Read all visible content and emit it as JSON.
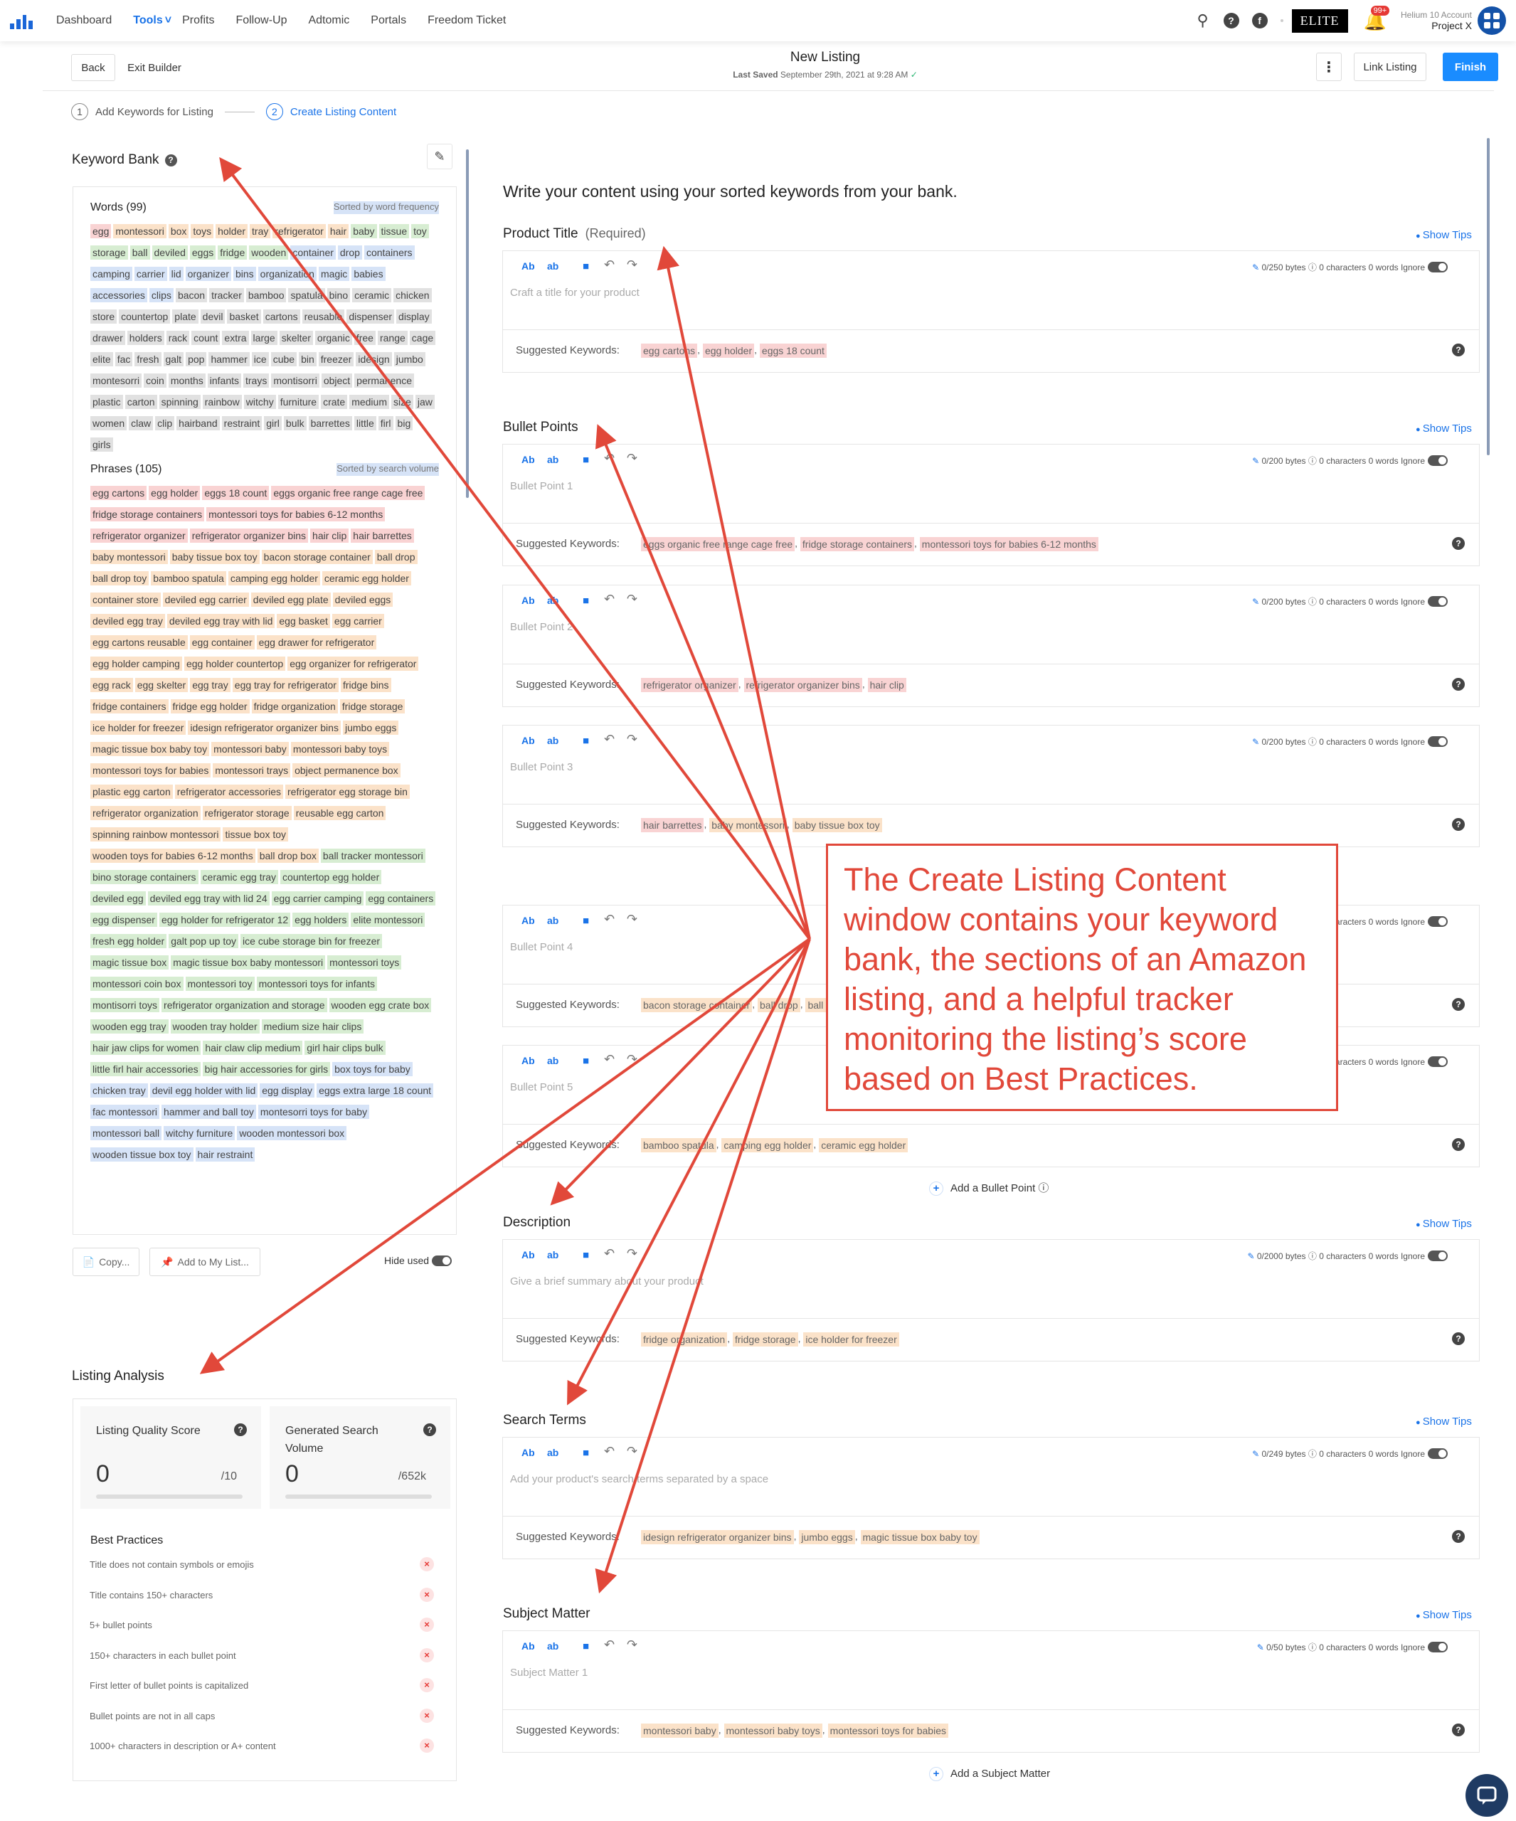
{
  "nav": {
    "links": [
      "Dashboard",
      "Tools",
      "Profits",
      "Follow-Up",
      "Adtomic",
      "Portals",
      "Freedom Ticket"
    ],
    "elite": "ELITE",
    "notif_count": "99+",
    "account_label": "Helium 10 Account",
    "account_name": "Project X"
  },
  "builder": {
    "back": "Back",
    "exit": "Exit Builder",
    "title": "New Listing",
    "saved_label": "Last Saved",
    "saved_time": "September 29th, 2021 at 9:28 AM",
    "link_listing": "Link Listing",
    "finish": "Finish"
  },
  "steps": {
    "s1_num": "1",
    "s1": "Add Keywords for Listing",
    "s2_num": "2",
    "s2": "Create Listing Content"
  },
  "keyword_bank": {
    "title": "Keyword Bank",
    "words_header": "Words (99)",
    "words_sort": "Sorted by word frequency",
    "words": [
      [
        "egg",
        "r"
      ],
      [
        "montessori",
        "o"
      ],
      [
        "box",
        "o"
      ],
      [
        "toys",
        "o"
      ],
      [
        "holder",
        "o"
      ],
      [
        "tray",
        "o"
      ],
      [
        "refrigerator",
        "o"
      ],
      [
        "hair",
        "o"
      ],
      [
        "baby",
        "g"
      ],
      [
        "tissue",
        "g"
      ],
      [
        "toy",
        "g"
      ],
      [
        "storage",
        "g"
      ],
      [
        "ball",
        "g"
      ],
      [
        "deviled",
        "g"
      ],
      [
        "eggs",
        "g"
      ],
      [
        "fridge",
        "g"
      ],
      [
        "wooden",
        "g"
      ],
      [
        "container",
        "b"
      ],
      [
        "drop",
        "b"
      ],
      [
        "containers",
        "b"
      ],
      [
        "camping",
        "b"
      ],
      [
        "carrier",
        "b"
      ],
      [
        "lid",
        "b"
      ],
      [
        "organizer",
        "b"
      ],
      [
        "bins",
        "b"
      ],
      [
        "organization",
        "b"
      ],
      [
        "magic",
        "b"
      ],
      [
        "babies",
        "b"
      ],
      [
        "accessories",
        "b"
      ],
      [
        "clips",
        "b"
      ],
      [
        "bacon",
        "x"
      ],
      [
        "tracker",
        "x"
      ],
      [
        "bamboo",
        "x"
      ],
      [
        "spatula",
        "x"
      ],
      [
        "bino",
        "x"
      ],
      [
        "ceramic",
        "x"
      ],
      [
        "chicken",
        "x"
      ],
      [
        "store",
        "x"
      ],
      [
        "countertop",
        "x"
      ],
      [
        "plate",
        "x"
      ],
      [
        "devil",
        "x"
      ],
      [
        "basket",
        "x"
      ],
      [
        "cartons",
        "x"
      ],
      [
        "reusable",
        "x"
      ],
      [
        "dispenser",
        "x"
      ],
      [
        "display",
        "x"
      ],
      [
        "drawer",
        "x"
      ],
      [
        "holders",
        "x"
      ],
      [
        "rack",
        "x"
      ],
      [
        "count",
        "x"
      ],
      [
        "extra",
        "x"
      ],
      [
        "large",
        "x"
      ],
      [
        "skelter",
        "x"
      ],
      [
        "organic",
        "x"
      ],
      [
        "free",
        "x"
      ],
      [
        "range",
        "x"
      ],
      [
        "cage",
        "x"
      ],
      [
        "elite",
        "x"
      ],
      [
        "fac",
        "x"
      ],
      [
        "fresh",
        "x"
      ],
      [
        "galt",
        "x"
      ],
      [
        "pop",
        "x"
      ],
      [
        "hammer",
        "x"
      ],
      [
        "ice",
        "x"
      ],
      [
        "cube",
        "x"
      ],
      [
        "bin",
        "x"
      ],
      [
        "freezer",
        "x"
      ],
      [
        "idesign",
        "x"
      ],
      [
        "jumbo",
        "x"
      ],
      [
        "montesorri",
        "x"
      ],
      [
        "coin",
        "x"
      ],
      [
        "months",
        "x"
      ],
      [
        "infants",
        "x"
      ],
      [
        "trays",
        "x"
      ],
      [
        "montisorri",
        "x"
      ],
      [
        "object",
        "x"
      ],
      [
        "permanence",
        "x"
      ],
      [
        "plastic",
        "x"
      ],
      [
        "carton",
        "x"
      ],
      [
        "spinning",
        "x"
      ],
      [
        "rainbow",
        "x"
      ],
      [
        "witchy",
        "x"
      ],
      [
        "furniture",
        "x"
      ],
      [
        "crate",
        "x"
      ],
      [
        "medium",
        "x"
      ],
      [
        "size",
        "x"
      ],
      [
        "jaw",
        "x"
      ],
      [
        "women",
        "x"
      ],
      [
        "claw",
        "x"
      ],
      [
        "clip",
        "x"
      ],
      [
        "hairband",
        "x"
      ],
      [
        "restraint",
        "x"
      ],
      [
        "girl",
        "x"
      ],
      [
        "bulk",
        "x"
      ],
      [
        "barrettes",
        "x"
      ],
      [
        "little",
        "x"
      ],
      [
        "firl",
        "x"
      ],
      [
        "big",
        "x"
      ],
      [
        "girls",
        "x"
      ]
    ],
    "phrases_header": "Phrases (105)",
    "phrases_sort": "Sorted by search volume",
    "phrases": [
      [
        "egg cartons",
        "r"
      ],
      [
        "egg holder",
        "r"
      ],
      [
        "eggs 18 count",
        "r"
      ],
      [
        "eggs organic free range cage free",
        "r"
      ],
      [
        "fridge storage containers",
        "r"
      ],
      [
        "montessori toys for babies 6-12 months",
        "r"
      ],
      [
        "refrigerator organizer",
        "r"
      ],
      [
        "refrigerator organizer bins",
        "r"
      ],
      [
        "hair clip",
        "r"
      ],
      [
        "hair barrettes",
        "r"
      ],
      [
        "baby montessori",
        "o"
      ],
      [
        "baby tissue box toy",
        "o"
      ],
      [
        "bacon storage container",
        "o"
      ],
      [
        "ball drop",
        "o"
      ],
      [
        "ball drop toy",
        "o"
      ],
      [
        "bamboo spatula",
        "o"
      ],
      [
        "camping egg holder",
        "o"
      ],
      [
        "ceramic egg holder",
        "o"
      ],
      [
        "container store",
        "o"
      ],
      [
        "deviled egg carrier",
        "o"
      ],
      [
        "deviled egg plate",
        "o"
      ],
      [
        "deviled eggs",
        "o"
      ],
      [
        "deviled egg tray",
        "o"
      ],
      [
        "deviled egg tray with lid",
        "o"
      ],
      [
        "egg basket",
        "o"
      ],
      [
        "egg carrier",
        "o"
      ],
      [
        "egg cartons reusable",
        "o"
      ],
      [
        "egg container",
        "o"
      ],
      [
        "egg drawer for refrigerator",
        "o"
      ],
      [
        "egg holder camping",
        "o"
      ],
      [
        "egg holder countertop",
        "o"
      ],
      [
        "egg organizer for refrigerator",
        "o"
      ],
      [
        "egg rack",
        "o"
      ],
      [
        "egg skelter",
        "o"
      ],
      [
        "egg tray",
        "o"
      ],
      [
        "egg tray for refrigerator",
        "o"
      ],
      [
        "fridge bins",
        "o"
      ],
      [
        "fridge containers",
        "o"
      ],
      [
        "fridge egg holder",
        "o"
      ],
      [
        "fridge organization",
        "o"
      ],
      [
        "fridge storage",
        "o"
      ],
      [
        "ice holder for freezer",
        "o"
      ],
      [
        "idesign refrigerator organizer bins",
        "o"
      ],
      [
        "jumbo eggs",
        "o"
      ],
      [
        "magic tissue box baby toy",
        "o"
      ],
      [
        "montessori baby",
        "o"
      ],
      [
        "montessori baby toys",
        "o"
      ],
      [
        "montessori toys for babies",
        "o"
      ],
      [
        "montessori trays",
        "o"
      ],
      [
        "object permanence box",
        "o"
      ],
      [
        "plastic egg carton",
        "o"
      ],
      [
        "refrigerator accessories",
        "o"
      ],
      [
        "refrigerator egg storage bin",
        "o"
      ],
      [
        "refrigerator organization",
        "o"
      ],
      [
        "refrigerator storage",
        "o"
      ],
      [
        "reusable egg carton",
        "o"
      ],
      [
        "spinning rainbow montessori",
        "o"
      ],
      [
        "tissue box toy",
        "o"
      ],
      [
        "wooden toys for babies 6-12 months",
        "o"
      ],
      [
        "ball drop box",
        "o"
      ],
      [
        "ball tracker montessori",
        "g"
      ],
      [
        "bino storage containers",
        "g"
      ],
      [
        "ceramic egg tray",
        "g"
      ],
      [
        "countertop egg holder",
        "g"
      ],
      [
        "deviled egg",
        "g"
      ],
      [
        "deviled egg tray with lid 24",
        "g"
      ],
      [
        "egg carrier camping",
        "g"
      ],
      [
        "egg containers",
        "g"
      ],
      [
        "egg dispenser",
        "g"
      ],
      [
        "egg holder for refrigerator 12",
        "g"
      ],
      [
        "egg holders",
        "g"
      ],
      [
        "elite montessori",
        "g"
      ],
      [
        "fresh egg holder",
        "g"
      ],
      [
        "galt pop up toy",
        "g"
      ],
      [
        "ice cube storage bin for freezer",
        "g"
      ],
      [
        "magic tissue box",
        "g"
      ],
      [
        "magic tissue box baby montessori",
        "g"
      ],
      [
        "montessori toys",
        "g"
      ],
      [
        "montessori coin box",
        "g"
      ],
      [
        "montessori toy",
        "g"
      ],
      [
        "montessori toys for infants",
        "g"
      ],
      [
        "montisorri toys",
        "g"
      ],
      [
        "refrigerator organization and storage",
        "g"
      ],
      [
        "wooden egg crate box",
        "g"
      ],
      [
        "wooden egg tray",
        "g"
      ],
      [
        "wooden tray holder",
        "g"
      ],
      [
        "medium size hair clips",
        "g"
      ],
      [
        "hair jaw clips for women",
        "g"
      ],
      [
        "hair claw clip medium",
        "g"
      ],
      [
        "girl hair clips bulk",
        "g"
      ],
      [
        "little firl hair accessories",
        "g"
      ],
      [
        "big hair accessories for girls",
        "g"
      ],
      [
        "box toys for baby",
        "b"
      ],
      [
        "chicken tray",
        "b"
      ],
      [
        "devil egg holder with lid",
        "b"
      ],
      [
        "egg display",
        "b"
      ],
      [
        "eggs extra large 18 count",
        "b"
      ],
      [
        "fac montessori",
        "b"
      ],
      [
        "hammer and ball toy",
        "b"
      ],
      [
        "montesorri toys for baby",
        "b"
      ],
      [
        "montessori ball",
        "b"
      ],
      [
        "witchy furniture",
        "b"
      ],
      [
        "wooden montessori box",
        "b"
      ],
      [
        "wooden tissue box toy",
        "b"
      ],
      [
        "hair restraint",
        "b"
      ]
    ],
    "copy": "Copy...",
    "add_to_list": "Add to My List...",
    "hide_used": "Hide used"
  },
  "content": {
    "heading": "Write your content using your sorted keywords from your bank.",
    "show_tips": "Show Tips",
    "suggested_label": "Suggested Keywords:",
    "characters": "0 characters",
    "words": "0 words",
    "ignore": "Ignore",
    "tool_ab": "Ab",
    "tool_ab2": "ab",
    "product_title": {
      "label": "Product Title",
      "required": "(Required)",
      "placeholder": "Craft a title for your product",
      "bytes": "0/250 bytes",
      "keywords": [
        [
          "egg cartons",
          "r"
        ],
        [
          "egg holder",
          "r"
        ],
        [
          "eggs 18 count",
          "r"
        ]
      ]
    },
    "bullet_points_label": "Bullet Points",
    "bullets": [
      {
        "placeholder": "Bullet Point 1",
        "bytes": "0/200 bytes",
        "keywords": [
          [
            "eggs organic free range cage free",
            "r"
          ],
          [
            "fridge storage containers",
            "r"
          ],
          [
            "montessori toys for babies 6-12 months",
            "r"
          ]
        ]
      },
      {
        "placeholder": "Bullet Point 2",
        "bytes": "0/200 bytes",
        "keywords": [
          [
            "refrigerator organizer",
            "r"
          ],
          [
            "refrigerator organizer bins",
            "r"
          ],
          [
            "hair clip",
            "r"
          ]
        ]
      },
      {
        "placeholder": "Bullet Point 3",
        "bytes": "0/200 bytes",
        "keywords": [
          [
            "hair barrettes",
            "r"
          ],
          [
            "baby montessori",
            "o"
          ],
          [
            "baby tissue box toy",
            "o"
          ]
        ]
      },
      {
        "placeholder": "Bullet Point 4",
        "bytes": "0/200 bytes",
        "keywords": [
          [
            "bacon storage container",
            "o"
          ],
          [
            "ball drop",
            "o"
          ],
          [
            "ball drop toy",
            "o"
          ]
        ]
      },
      {
        "placeholder": "Bullet Point 5",
        "bytes": "0/200 bytes",
        "keywords": [
          [
            "bamboo spatula",
            "o"
          ],
          [
            "camping egg holder",
            "o"
          ],
          [
            "ceramic egg holder",
            "o"
          ]
        ]
      }
    ],
    "add_bullet": "Add a Bullet Point",
    "description": {
      "label": "Description",
      "placeholder": "Give a brief summary about your product",
      "bytes": "0/2000 bytes",
      "keywords": [
        [
          "fridge organization",
          "o"
        ],
        [
          "fridge storage",
          "o"
        ],
        [
          "ice holder for freezer",
          "o"
        ]
      ]
    },
    "search_terms": {
      "label": "Search Terms",
      "placeholder": "Add your product's search terms separated by a space",
      "bytes": "0/249 bytes",
      "keywords": [
        [
          "idesign refrigerator organizer bins",
          "o"
        ],
        [
          "jumbo eggs",
          "o"
        ],
        [
          "magic tissue box baby toy",
          "o"
        ]
      ]
    },
    "subject_matter": {
      "label": "Subject Matter",
      "placeholder": "Subject Matter 1",
      "bytes": "0/50 bytes",
      "keywords": [
        [
          "montessori baby",
          "o"
        ],
        [
          "montessori baby toys",
          "o"
        ],
        [
          "montessori toys for babies",
          "o"
        ]
      ]
    },
    "add_subject": "Add a Subject Matter"
  },
  "analysis": {
    "title": "Listing Analysis",
    "lqs_title": "Listing Quality Score",
    "lqs_value": "0",
    "lqs_max": "/10",
    "gsv_title": "Generated Search Volume",
    "gsv_value": "0",
    "gsv_max": "/652k",
    "best_practices_title": "Best Practices",
    "best_practices": [
      "Title does not contain symbols or emojis",
      "Title contains 150+ characters",
      "5+ bullet points",
      "150+ characters in each bullet point",
      "First letter of bullet points is capitalized",
      "Bullet points are not in all caps",
      "1000+ characters in description or A+ content"
    ]
  },
  "callout": "The Create Listing Content window contains your keyword bank, the sections of an Amazon listing, and a helpful tracker monitoring the listing’s score based on Best Practices."
}
